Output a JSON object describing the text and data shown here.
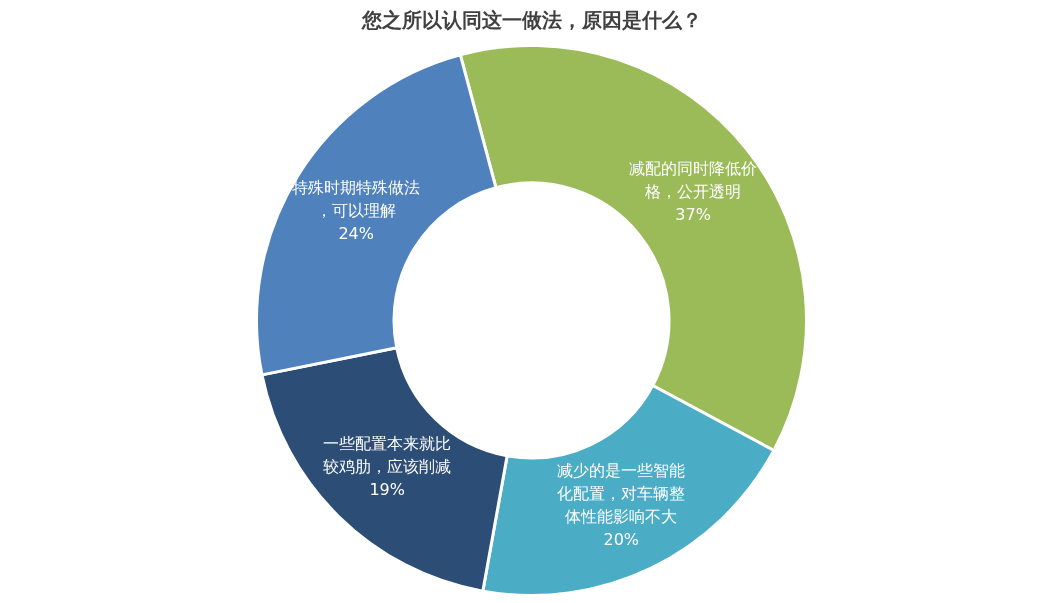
{
  "chart_data": {
    "type": "donut",
    "title": "您之所以认同这一做法，原因是什么？",
    "categories": [
      "减配的同时降低价格，公开透明",
      "减少的是一些智能化配置，对车辆整体性能影响不大",
      "一些配置本来就比较鸡肋，应该削减",
      "特殊时期特殊做法，可以理解"
    ],
    "values": [
      37,
      20,
      19,
      24
    ],
    "colors": [
      "#9bbb59",
      "#4bacc6",
      "#2c4d75",
      "#4f81bd"
    ],
    "value_labels": [
      "37%",
      "20%",
      "19%",
      "24%"
    ],
    "legend": false
  }
}
